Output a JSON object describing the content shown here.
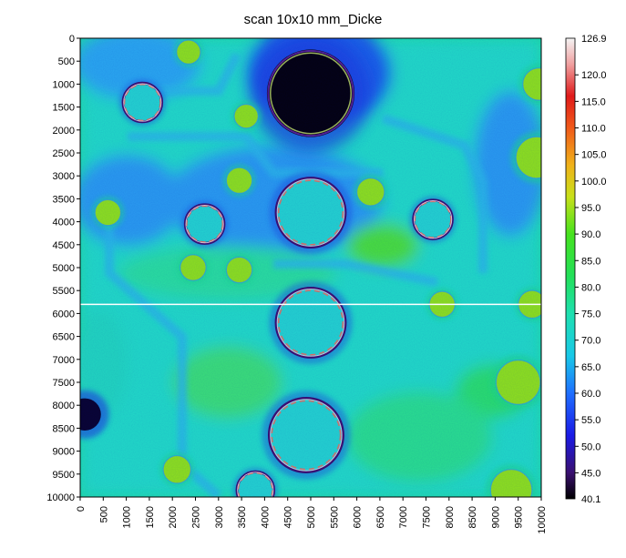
{
  "chart_data": {
    "type": "heatmap",
    "title": "scan 10x10 mm_Dicke",
    "xlabel": "",
    "ylabel": "",
    "xlim": [
      0,
      10000
    ],
    "ylim": [
      0,
      10000
    ],
    "y_inverted": true,
    "x_ticks": [
      0,
      500,
      1000,
      1500,
      2000,
      2500,
      3000,
      3500,
      4000,
      4500,
      5000,
      5500,
      6000,
      6500,
      7000,
      7500,
      8000,
      8500,
      9000,
      9500,
      10000
    ],
    "y_ticks": [
      0,
      500,
      1000,
      1500,
      2000,
      2500,
      3000,
      3500,
      4000,
      4500,
      5000,
      5500,
      6000,
      6500,
      7000,
      7500,
      8000,
      8500,
      9000,
      9500,
      10000
    ],
    "colorbar": {
      "min": 40.1,
      "max": 126.9,
      "ticks": [
        45.0,
        50.0,
        55.0,
        60.0,
        65.0,
        70.0,
        75.0,
        80.0,
        85.0,
        90.0,
        95.0,
        100.0,
        105.0,
        110.0,
        115.0,
        120.0
      ],
      "min_label": "40.1",
      "max_label": "126.9",
      "tick_labels": [
        "45.0",
        "50.0",
        "55.0",
        "60.0",
        "65.0",
        "70.0",
        "75.0",
        "80.0",
        "85.0",
        "90.0",
        "95.0",
        "100.0",
        "105.0",
        "110.0",
        "115.0",
        "120.0"
      ],
      "colormap_stops": [
        {
          "v": 40.1,
          "c": "#000000"
        },
        {
          "v": 45.0,
          "c": "#3a1070"
        },
        {
          "v": 52.0,
          "c": "#1a1ae6"
        },
        {
          "v": 60.0,
          "c": "#1f6fff"
        },
        {
          "v": 67.0,
          "c": "#18c8e8"
        },
        {
          "v": 75.0,
          "c": "#1ee0b0"
        },
        {
          "v": 82.0,
          "c": "#22e05a"
        },
        {
          "v": 90.0,
          "c": "#46e21e"
        },
        {
          "v": 97.0,
          "c": "#c8e01a"
        },
        {
          "v": 103.0,
          "c": "#f0b21a"
        },
        {
          "v": 110.0,
          "c": "#f05a1a"
        },
        {
          "v": 116.0,
          "c": "#e01a1a"
        },
        {
          "v": 122.0,
          "c": "#f0a0a0"
        },
        {
          "v": 126.9,
          "c": "#f4f4f4"
        }
      ]
    },
    "features": [
      {
        "kind": "hole-dark",
        "x": 5000,
        "y": 1200,
        "r": 950
      },
      {
        "kind": "ring-circle",
        "x": 5000,
        "y": 3800,
        "r": 750
      },
      {
        "kind": "ring-circle",
        "x": 5000,
        "y": 6200,
        "r": 750
      },
      {
        "kind": "ring-circle",
        "x": 4900,
        "y": 8650,
        "r": 800
      },
      {
        "kind": "ring-circle",
        "x": 1350,
        "y": 1400,
        "r": 420
      },
      {
        "kind": "ring-circle",
        "x": 2700,
        "y": 4050,
        "r": 420
      },
      {
        "kind": "ring-circle",
        "x": 7650,
        "y": 3950,
        "r": 420
      },
      {
        "kind": "ring-circle",
        "x": 3800,
        "y": 9850,
        "r": 400
      },
      {
        "kind": "spot",
        "x": 2350,
        "y": 300,
        "r": 260
      },
      {
        "kind": "spot",
        "x": 3600,
        "y": 1700,
        "r": 260
      },
      {
        "kind": "spot",
        "x": 3450,
        "y": 3100,
        "r": 280
      },
      {
        "kind": "spot",
        "x": 6300,
        "y": 3350,
        "r": 300
      },
      {
        "kind": "spot",
        "x": 600,
        "y": 3800,
        "r": 280
      },
      {
        "kind": "spot",
        "x": 2450,
        "y": 5000,
        "r": 280
      },
      {
        "kind": "spot",
        "x": 3450,
        "y": 5050,
        "r": 280
      },
      {
        "kind": "spot",
        "x": 7850,
        "y": 5800,
        "r": 280
      },
      {
        "kind": "spot",
        "x": 9800,
        "y": 5800,
        "r": 300
      },
      {
        "kind": "spot",
        "x": 9950,
        "y": 1000,
        "r": 350
      },
      {
        "kind": "spot",
        "x": 9900,
        "y": 2600,
        "r": 450
      },
      {
        "kind": "spot",
        "x": 9500,
        "y": 7500,
        "r": 480
      },
      {
        "kind": "spot",
        "x": 9350,
        "y": 9850,
        "r": 450
      },
      {
        "kind": "spot",
        "x": 2100,
        "y": 9400,
        "r": 300
      },
      {
        "kind": "dark-spot",
        "x": 100,
        "y": 8200,
        "r": 350
      }
    ],
    "artifact_line_y": 5800
  }
}
